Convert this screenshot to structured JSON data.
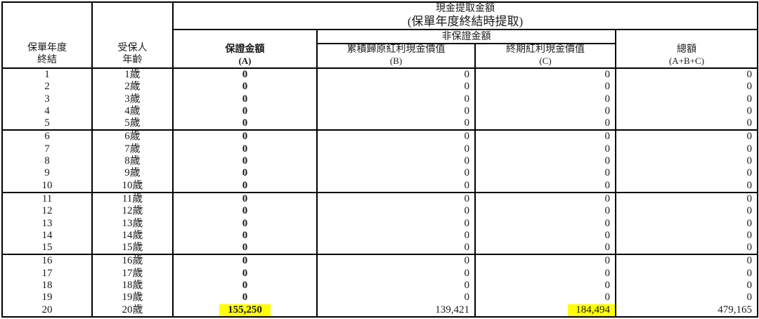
{
  "table": {
    "top_header": {
      "line1": "現金提取金額",
      "line2": "(保單年度終結時提取)"
    },
    "non_guaranteed_label": "非保證金額",
    "columns": {
      "policy_year": {
        "line1": "保單年度",
        "line2": "終結"
      },
      "age": {
        "line1": "受保人",
        "line2": "年齡"
      },
      "guaranteed": {
        "line1": "保證金額",
        "line2": "(A)"
      },
      "accumulated_dividend": {
        "line1": "累積歸原紅利現金價值",
        "line2": "(B)"
      },
      "terminal_dividend": {
        "line1": "終期紅利現金價值",
        "line2": "(C)"
      },
      "total": {
        "line1": "總額",
        "line2": "(A+B+C)"
      }
    },
    "group_size": 5,
    "highlight_color": "#ffff00",
    "rows": [
      {
        "year": "1",
        "age": "1歲",
        "guaranteed": "0",
        "accumulated": "0",
        "terminal": "0",
        "total": "0",
        "highlight_guaranteed": false,
        "highlight_terminal": false
      },
      {
        "year": "2",
        "age": "2歲",
        "guaranteed": "0",
        "accumulated": "0",
        "terminal": "0",
        "total": "0",
        "highlight_guaranteed": false,
        "highlight_terminal": false
      },
      {
        "year": "3",
        "age": "3歲",
        "guaranteed": "0",
        "accumulated": "0",
        "terminal": "0",
        "total": "0",
        "highlight_guaranteed": false,
        "highlight_terminal": false
      },
      {
        "year": "4",
        "age": "4歲",
        "guaranteed": "0",
        "accumulated": "0",
        "terminal": "0",
        "total": "0",
        "highlight_guaranteed": false,
        "highlight_terminal": false
      },
      {
        "year": "5",
        "age": "5歲",
        "guaranteed": "0",
        "accumulated": "0",
        "terminal": "0",
        "total": "0",
        "highlight_guaranteed": false,
        "highlight_terminal": false
      },
      {
        "year": "6",
        "age": "6歲",
        "guaranteed": "0",
        "accumulated": "0",
        "terminal": "0",
        "total": "0",
        "highlight_guaranteed": false,
        "highlight_terminal": false
      },
      {
        "year": "7",
        "age": "7歲",
        "guaranteed": "0",
        "accumulated": "0",
        "terminal": "0",
        "total": "0",
        "highlight_guaranteed": false,
        "highlight_terminal": false
      },
      {
        "year": "8",
        "age": "8歲",
        "guaranteed": "0",
        "accumulated": "0",
        "terminal": "0",
        "total": "0",
        "highlight_guaranteed": false,
        "highlight_terminal": false
      },
      {
        "year": "9",
        "age": "9歲",
        "guaranteed": "0",
        "accumulated": "0",
        "terminal": "0",
        "total": "0",
        "highlight_guaranteed": false,
        "highlight_terminal": false
      },
      {
        "year": "10",
        "age": "10歲",
        "guaranteed": "0",
        "accumulated": "0",
        "terminal": "0",
        "total": "0",
        "highlight_guaranteed": false,
        "highlight_terminal": false
      },
      {
        "year": "11",
        "age": "11歲",
        "guaranteed": "0",
        "accumulated": "0",
        "terminal": "0",
        "total": "0",
        "highlight_guaranteed": false,
        "highlight_terminal": false
      },
      {
        "year": "12",
        "age": "12歲",
        "guaranteed": "0",
        "accumulated": "0",
        "terminal": "0",
        "total": "0",
        "highlight_guaranteed": false,
        "highlight_terminal": false
      },
      {
        "year": "13",
        "age": "13歲",
        "guaranteed": "0",
        "accumulated": "0",
        "terminal": "0",
        "total": "0",
        "highlight_guaranteed": false,
        "highlight_terminal": false
      },
      {
        "year": "14",
        "age": "14歲",
        "guaranteed": "0",
        "accumulated": "0",
        "terminal": "0",
        "total": "0",
        "highlight_guaranteed": false,
        "highlight_terminal": false
      },
      {
        "year": "15",
        "age": "15歲",
        "guaranteed": "0",
        "accumulated": "0",
        "terminal": "0",
        "total": "0",
        "highlight_guaranteed": false,
        "highlight_terminal": false
      },
      {
        "year": "16",
        "age": "16歲",
        "guaranteed": "0",
        "accumulated": "0",
        "terminal": "0",
        "total": "0",
        "highlight_guaranteed": false,
        "highlight_terminal": false
      },
      {
        "year": "17",
        "age": "17歲",
        "guaranteed": "0",
        "accumulated": "0",
        "terminal": "0",
        "total": "0",
        "highlight_guaranteed": false,
        "highlight_terminal": false
      },
      {
        "year": "18",
        "age": "18歲",
        "guaranteed": "0",
        "accumulated": "0",
        "terminal": "0",
        "total": "0",
        "highlight_guaranteed": false,
        "highlight_terminal": false
      },
      {
        "year": "19",
        "age": "19歲",
        "guaranteed": "0",
        "accumulated": "0",
        "terminal": "0",
        "total": "0",
        "highlight_guaranteed": false,
        "highlight_terminal": false
      },
      {
        "year": "20",
        "age": "20歲",
        "guaranteed": "155,250",
        "accumulated": "139,421",
        "terminal": "184,494",
        "total": "479,165",
        "highlight_guaranteed": true,
        "highlight_terminal": true
      }
    ]
  }
}
